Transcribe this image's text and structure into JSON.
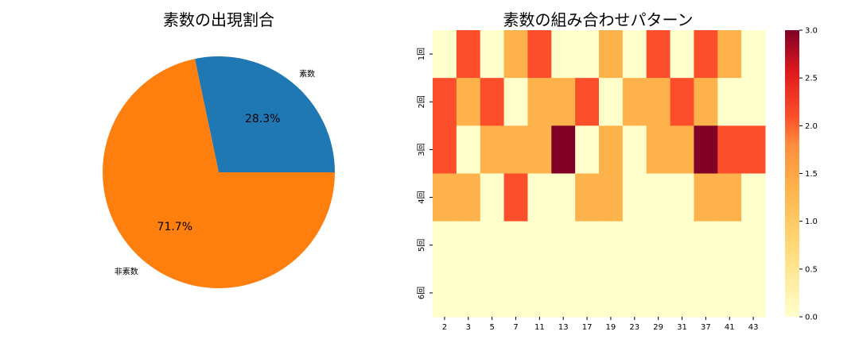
{
  "chart_data": [
    {
      "type": "pie",
      "title": "素数の出現割合",
      "slices": [
        {
          "label": "素数",
          "percent": 28.3,
          "percent_label": "28.3%",
          "color": "#1f77b4"
        },
        {
          "label": "非素数",
          "percent": 71.7,
          "percent_label": "71.7%",
          "color": "#ff7f0e"
        }
      ],
      "start_angle_deg": 0
    },
    {
      "type": "heatmap",
      "title": "素数の組み合わせパターン",
      "x_categories": [
        "2",
        "3",
        "5",
        "7",
        "11",
        "13",
        "17",
        "19",
        "23",
        "29",
        "31",
        "37",
        "41",
        "43"
      ],
      "y_categories": [
        "1回",
        "2回",
        "3回",
        "4回",
        "5回",
        "6回"
      ],
      "values": [
        [
          0,
          2,
          0,
          1,
          2,
          0,
          0,
          1,
          0,
          2,
          0,
          2,
          1,
          0
        ],
        [
          2,
          1,
          2,
          0,
          1,
          1,
          2,
          0,
          1,
          1,
          2,
          1,
          0,
          0
        ],
        [
          2,
          0,
          1,
          1,
          1,
          3,
          0,
          1,
          0,
          1,
          1,
          3,
          2,
          2
        ],
        [
          1,
          1,
          0,
          2,
          0,
          0,
          1,
          1,
          0,
          0,
          0,
          1,
          1,
          0
        ],
        [
          0,
          0,
          0,
          0,
          0,
          0,
          0,
          0,
          0,
          0,
          0,
          0,
          0,
          0
        ],
        [
          0,
          0,
          0,
          0,
          0,
          0,
          0,
          0,
          0,
          0,
          0,
          0,
          0,
          0
        ]
      ],
      "colormap": "YlOrRd",
      "colorbar": {
        "min": 0,
        "max": 3,
        "ticks": [
          "0.0",
          "0.5",
          "1.0",
          "1.5",
          "2.0",
          "2.5",
          "3.0"
        ]
      }
    }
  ]
}
